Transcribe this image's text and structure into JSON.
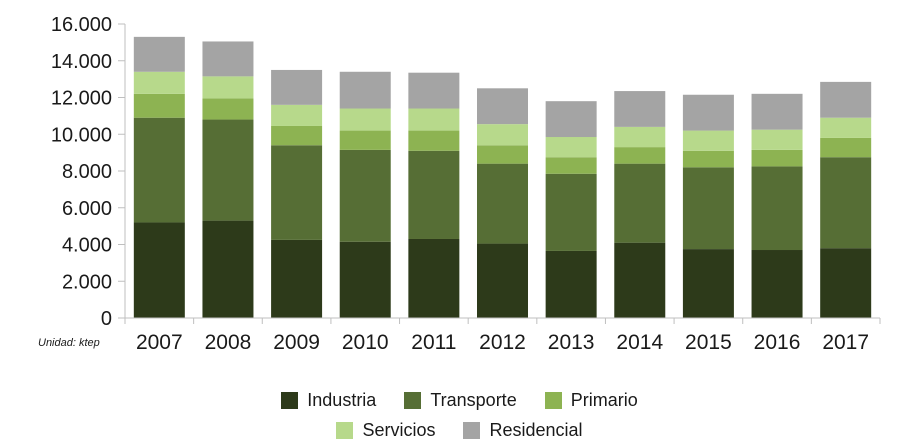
{
  "chart_data": {
    "type": "bar",
    "stacked": true,
    "unit_label": "Unidad: ktep",
    "categories": [
      "2007",
      "2008",
      "2009",
      "2010",
      "2011",
      "2012",
      "2013",
      "2014",
      "2015",
      "2016",
      "2017"
    ],
    "ylim": [
      0,
      16000
    ],
    "yticks": [
      {
        "value": 0,
        "label": "0"
      },
      {
        "value": 2000,
        "label": "2.000"
      },
      {
        "value": 4000,
        "label": "4.000"
      },
      {
        "value": 6000,
        "label": "6.000"
      },
      {
        "value": 8000,
        "label": "8.000"
      },
      {
        "value": 10000,
        "label": "10.000"
      },
      {
        "value": 12000,
        "label": "12.000"
      },
      {
        "value": 14000,
        "label": "14.000"
      },
      {
        "value": 16000,
        "label": "16.000"
      }
    ],
    "grid": false,
    "legend_position": "bottom",
    "series": [
      {
        "name": "Industria",
        "color": "#2d3a1a",
        "values": [
          5200,
          5300,
          4250,
          4150,
          4300,
          4050,
          3650,
          4100,
          3750,
          3700,
          3800
        ]
      },
      {
        "name": "Transporte",
        "color": "#566e35",
        "values": [
          5700,
          5500,
          5150,
          5000,
          4800,
          4350,
          4200,
          4300,
          4450,
          4550,
          4950
        ]
      },
      {
        "name": "Primario",
        "color": "#8db352",
        "values": [
          1300,
          1150,
          1050,
          1050,
          1100,
          1000,
          900,
          900,
          900,
          900,
          1050
        ]
      },
      {
        "name": "Servicios",
        "color": "#b7d98b",
        "values": [
          1200,
          1200,
          1150,
          1200,
          1200,
          1150,
          1100,
          1100,
          1100,
          1100,
          1100
        ]
      },
      {
        "name": "Residencial",
        "color": "#a4a4a4",
        "values": [
          1900,
          1900,
          1900,
          2000,
          1950,
          1950,
          1950,
          1950,
          1950,
          1950,
          1950
        ]
      }
    ]
  }
}
